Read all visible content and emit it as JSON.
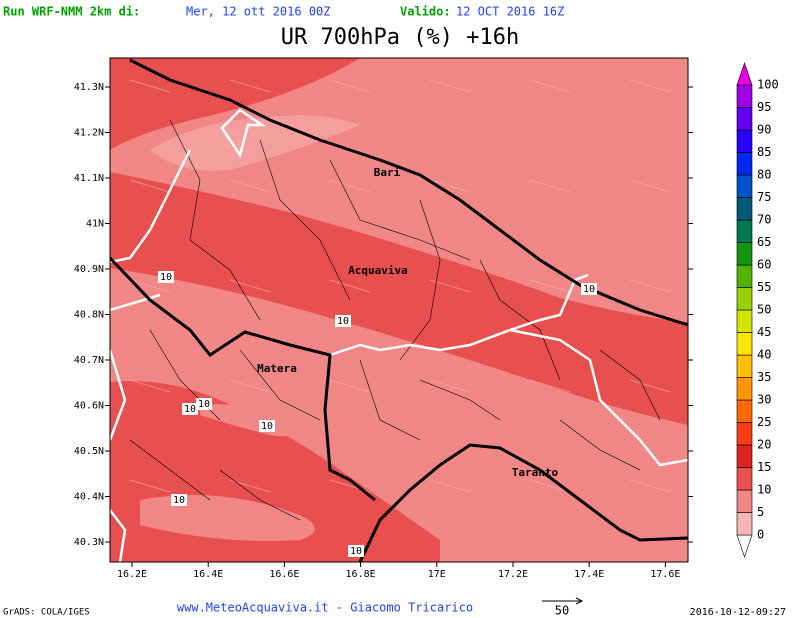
{
  "header": {
    "run_label": "Run WRF-NMM 2km di:",
    "run_date": "Mer, 12 ott 2016 00Z",
    "valid_label": "Valido:",
    "valid_date": "12 OCT 2016 16Z"
  },
  "title": "UR 700hPa (%) +16h",
  "map": {
    "lat_ticks": [
      "41.3N",
      "41.2N",
      "41.1N",
      "41N",
      "40.9N",
      "40.8N",
      "40.7N",
      "40.6N",
      "40.5N",
      "40.4N",
      "40.3N"
    ],
    "lon_ticks": [
      "16.2E",
      "16.4E",
      "16.6E",
      "16.8E",
      "17E",
      "17.2E",
      "17.4E",
      "17.6E"
    ],
    "places": [
      "Bari",
      "Acquaviva",
      "Matera",
      "Taranto"
    ],
    "contour_labels": [
      "10",
      "10",
      "10",
      "10",
      "10",
      "10",
      "10",
      "10"
    ]
  },
  "colorbar": {
    "levels": [
      0,
      5,
      10,
      15,
      20,
      25,
      30,
      35,
      40,
      45,
      50,
      55,
      60,
      65,
      70,
      75,
      80,
      85,
      90,
      95,
      100
    ],
    "colors": [
      "#ffffff",
      "#f7b4b4",
      "#f08686",
      "#e85050",
      "#e02424",
      "#ff3c14",
      "#ff6a00",
      "#ff9400",
      "#ffbe00",
      "#ffe600",
      "#d2e600",
      "#96d200",
      "#50b400",
      "#149614",
      "#007850",
      "#005a78",
      "#0050c8",
      "#0028f0",
      "#2800ff",
      "#6400f0",
      "#a000e6",
      "#e600e6"
    ]
  },
  "footer": {
    "credit": "GrADS: COLA/IGES",
    "site": "www.MeteoAcquaviva.it  -  Giacomo Tricarico",
    "arrow_label": "50",
    "timestamp": "2016-10-12-09:27"
  }
}
